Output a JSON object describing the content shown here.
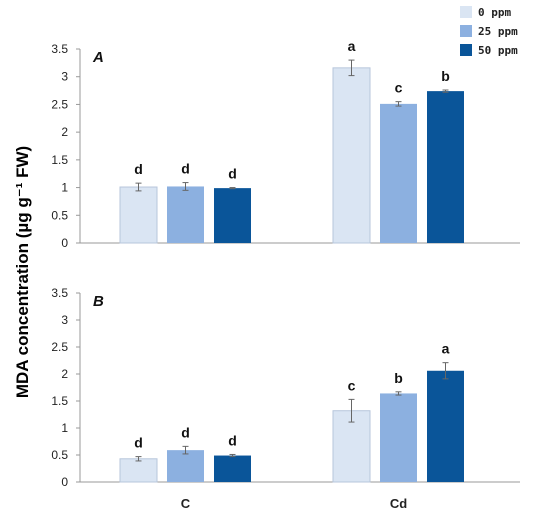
{
  "colors": {
    "series_0ppm": "#dae5f3",
    "series_25ppm": "#8cb0e0",
    "series_50ppm": "#0a5599",
    "axis": "#999999",
    "error_bar": "#666666"
  },
  "ylabel": "MDA concentration (µg g⁻¹ FW)",
  "legend": {
    "position": "top-right",
    "entries": [
      "0 ppm",
      "25 ppm",
      "50 ppm"
    ]
  },
  "chart_data": [
    {
      "type": "bar",
      "panel_label": "A",
      "categories": [
        "C",
        "Cd"
      ],
      "ylim": [
        0,
        3.5
      ],
      "yticks": [
        "0",
        "0.5",
        "1",
        "1.5",
        "2",
        "2.5",
        "3",
        "3.5"
      ],
      "grid": false,
      "series": [
        {
          "name": "0 ppm",
          "values": [
            1.01,
            3.16
          ],
          "errors": [
            0.07,
            0.14
          ],
          "letters": [
            "d",
            "a"
          ]
        },
        {
          "name": "25 ppm",
          "values": [
            1.02,
            2.51
          ],
          "errors": [
            0.07,
            0.04
          ],
          "letters": [
            "d",
            "c"
          ]
        },
        {
          "name": "50 ppm",
          "values": [
            0.99,
            2.74
          ],
          "errors": [
            0.01,
            0.02
          ],
          "letters": [
            "d",
            "b"
          ]
        }
      ]
    },
    {
      "type": "bar",
      "panel_label": "B",
      "categories": [
        "C",
        "Cd"
      ],
      "ylim": [
        0,
        3.5
      ],
      "yticks": [
        "0",
        "0.5",
        "1",
        "1.5",
        "2",
        "2.5",
        "3",
        "3.5"
      ],
      "grid": false,
      "series": [
        {
          "name": "0 ppm",
          "values": [
            0.43,
            1.32
          ],
          "errors": [
            0.04,
            0.21
          ],
          "letters": [
            "d",
            "c"
          ]
        },
        {
          "name": "25 ppm",
          "values": [
            0.59,
            1.64
          ],
          "errors": [
            0.07,
            0.03
          ],
          "letters": [
            "d",
            "b"
          ]
        },
        {
          "name": "50 ppm",
          "values": [
            0.49,
            2.06
          ],
          "errors": [
            0.02,
            0.15
          ],
          "letters": [
            "d",
            "a"
          ]
        }
      ]
    }
  ]
}
